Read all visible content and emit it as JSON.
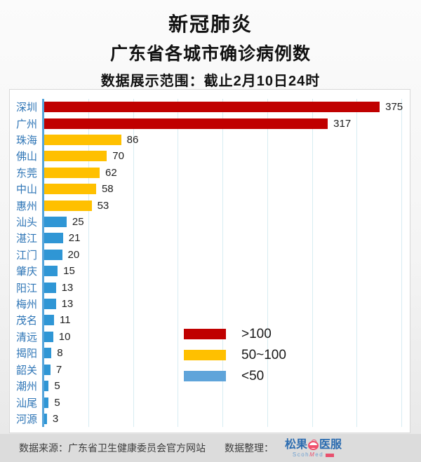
{
  "title": {
    "line1": "新冠肺炎",
    "line2": "广东省各城市确诊病例数",
    "line3": "数据展示范围：截止2月10日24时"
  },
  "chart_data": {
    "type": "bar",
    "orientation": "horizontal",
    "categories": [
      "深圳",
      "广州",
      "珠海",
      "佛山",
      "东莞",
      "中山",
      "惠州",
      "汕头",
      "湛江",
      "江门",
      "肇庆",
      "阳江",
      "梅州",
      "茂名",
      "清远",
      "揭阳",
      "韶关",
      "潮州",
      "汕尾",
      "河源"
    ],
    "values": [
      375,
      317,
      86,
      70,
      62,
      58,
      53,
      25,
      21,
      20,
      15,
      13,
      13,
      11,
      10,
      8,
      7,
      5,
      5,
      3
    ],
    "value_labels_shown": true,
    "xlim": [
      0,
      400
    ],
    "gridline_step": 50,
    "grid": "vertical-gridlines-only, no x tick labels",
    "bar_colors": {
      "gt100": "#c00000",
      "from50to100": "#ffc000",
      "lt50": "#2f96d5"
    },
    "category_label_color": "#2e75b6",
    "axis_line_color": "#56a5db",
    "gridline_color": "#d7ecf2",
    "legend": {
      "position": "inside-plot lower-center",
      "entries": [
        {
          "label": ">100",
          "color": "#c00000"
        },
        {
          "label": "50~100",
          "color": "#ffc000"
        },
        {
          "label": "<50",
          "color": "#5fa4da"
        }
      ]
    }
  },
  "footer": {
    "source_label": "数据来源：广东省卫生健康委员会官方网站",
    "credit_label": "数据整理：",
    "logo": {
      "cn_left": "松果",
      "cn_right": "医服",
      "latin_s": "Scoh",
      "latin_m": "M",
      "latin_ed": "ed",
      "brand_pink": "#f0506c",
      "brand_blue": "#2b6cb0"
    }
  }
}
